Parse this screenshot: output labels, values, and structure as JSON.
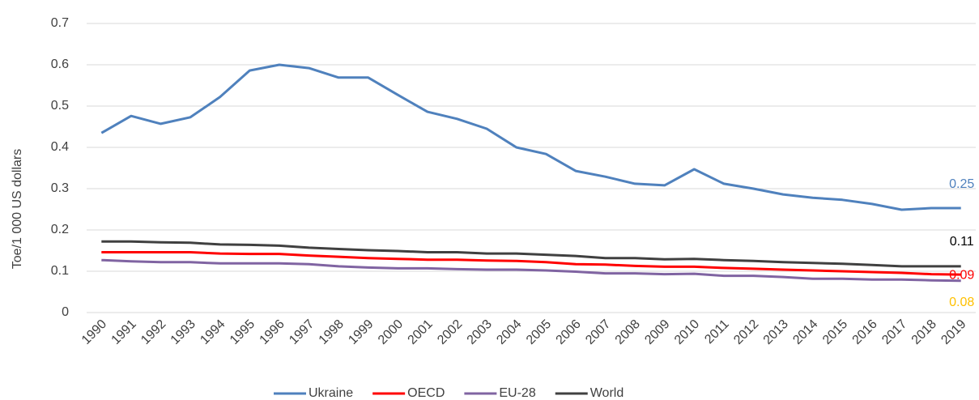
{
  "chart_data": {
    "type": "line",
    "y_axis_label": "Toe/1 000 US dollars",
    "categories": [
      "1990",
      "1991",
      "1992",
      "1993",
      "1994",
      "1995",
      "1996",
      "1997",
      "1998",
      "1999",
      "2000",
      "2001",
      "2002",
      "2003",
      "2004",
      "2005",
      "2006",
      "2007",
      "2008",
      "2009",
      "2010",
      "2011",
      "2012",
      "2013",
      "2014",
      "2015",
      "2016",
      "2017",
      "2018",
      "2019"
    ],
    "series": [
      {
        "name": "Ukraine",
        "color": "#4f81bd",
        "label_color": "#4f81bd",
        "values": [
          0.435,
          0.476,
          0.457,
          0.473,
          0.522,
          0.586,
          0.6,
          0.592,
          0.569,
          0.569,
          0.527,
          0.486,
          0.469,
          0.445,
          0.4,
          0.384,
          0.343,
          0.329,
          0.312,
          0.308,
          0.347,
          0.312,
          0.3,
          0.286,
          0.278,
          0.273,
          0.263,
          0.249,
          0.253,
          0.253
        ],
        "value_labels": [
          null,
          null,
          null,
          null,
          null,
          null,
          null,
          null,
          null,
          null,
          null,
          null,
          null,
          null,
          null,
          null,
          null,
          null,
          null,
          null,
          null,
          null,
          null,
          null,
          null,
          null,
          null,
          null,
          null,
          "0.25"
        ]
      },
      {
        "name": "OECD",
        "color": "#ff0000",
        "label_color": "#ff0000",
        "values": [
          0.146,
          0.146,
          0.146,
          0.146,
          0.143,
          0.142,
          0.142,
          0.138,
          0.135,
          0.132,
          0.13,
          0.128,
          0.128,
          0.126,
          0.125,
          0.122,
          0.117,
          0.116,
          0.113,
          0.111,
          0.111,
          0.108,
          0.106,
          0.104,
          0.102,
          0.1,
          0.098,
          0.096,
          0.093,
          0.092
        ],
        "value_labels": [
          null,
          null,
          null,
          null,
          null,
          null,
          null,
          null,
          null,
          null,
          null,
          null,
          null,
          null,
          null,
          null,
          null,
          null,
          null,
          null,
          null,
          null,
          null,
          null,
          null,
          null,
          null,
          null,
          null,
          "0.09"
        ]
      },
      {
        "name": "EU-28",
        "color": "#8064a2",
        "label_color": "#ffc000",
        "values": [
          0.127,
          0.124,
          0.122,
          0.122,
          0.119,
          0.119,
          0.119,
          0.117,
          0.112,
          0.109,
          0.107,
          0.107,
          0.105,
          0.104,
          0.104,
          0.102,
          0.099,
          0.095,
          0.095,
          0.093,
          0.094,
          0.089,
          0.089,
          0.086,
          0.082,
          0.082,
          0.08,
          0.08,
          0.078,
          0.077
        ],
        "value_labels": [
          null,
          null,
          null,
          null,
          null,
          null,
          null,
          null,
          null,
          null,
          null,
          null,
          null,
          null,
          null,
          null,
          null,
          null,
          null,
          null,
          null,
          null,
          null,
          null,
          null,
          null,
          null,
          null,
          null,
          "0.08"
        ]
      },
      {
        "name": "World",
        "color": "#404040",
        "label_color": "#000000",
        "values": [
          0.172,
          0.172,
          0.17,
          0.169,
          0.165,
          0.164,
          0.162,
          0.157,
          0.154,
          0.151,
          0.149,
          0.146,
          0.146,
          0.143,
          0.143,
          0.14,
          0.137,
          0.132,
          0.132,
          0.129,
          0.13,
          0.127,
          0.125,
          0.122,
          0.12,
          0.118,
          0.115,
          0.112,
          0.112,
          0.112
        ],
        "value_labels": [
          null,
          null,
          null,
          null,
          null,
          null,
          null,
          null,
          null,
          null,
          null,
          null,
          null,
          null,
          null,
          null,
          null,
          null,
          null,
          null,
          null,
          null,
          null,
          null,
          null,
          null,
          null,
          null,
          null,
          "0.11"
        ]
      }
    ],
    "ylim": [
      0,
      0.7
    ],
    "yticks": [
      0,
      0.1,
      0.2,
      0.3,
      0.4,
      0.5,
      0.6,
      0.7
    ],
    "grid": true,
    "legend": "bottom"
  }
}
